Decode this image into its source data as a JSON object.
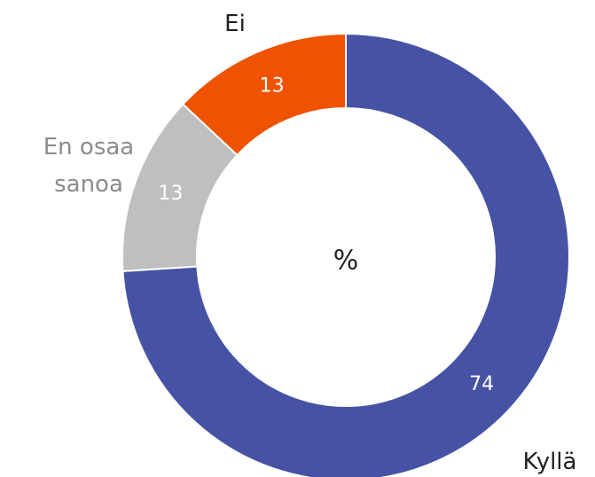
{
  "chart_data": {
    "type": "donut",
    "center_label": "%",
    "categories": [
      "Kyllä",
      "En osaa sanoa",
      "Ei"
    ],
    "values": [
      74,
      13,
      13
    ],
    "colors": [
      "#4653a5",
      "#bfbfbf",
      "#ef5300"
    ],
    "label_colors": [
      "#222222",
      "#8c8c8c",
      "#222222"
    ]
  }
}
